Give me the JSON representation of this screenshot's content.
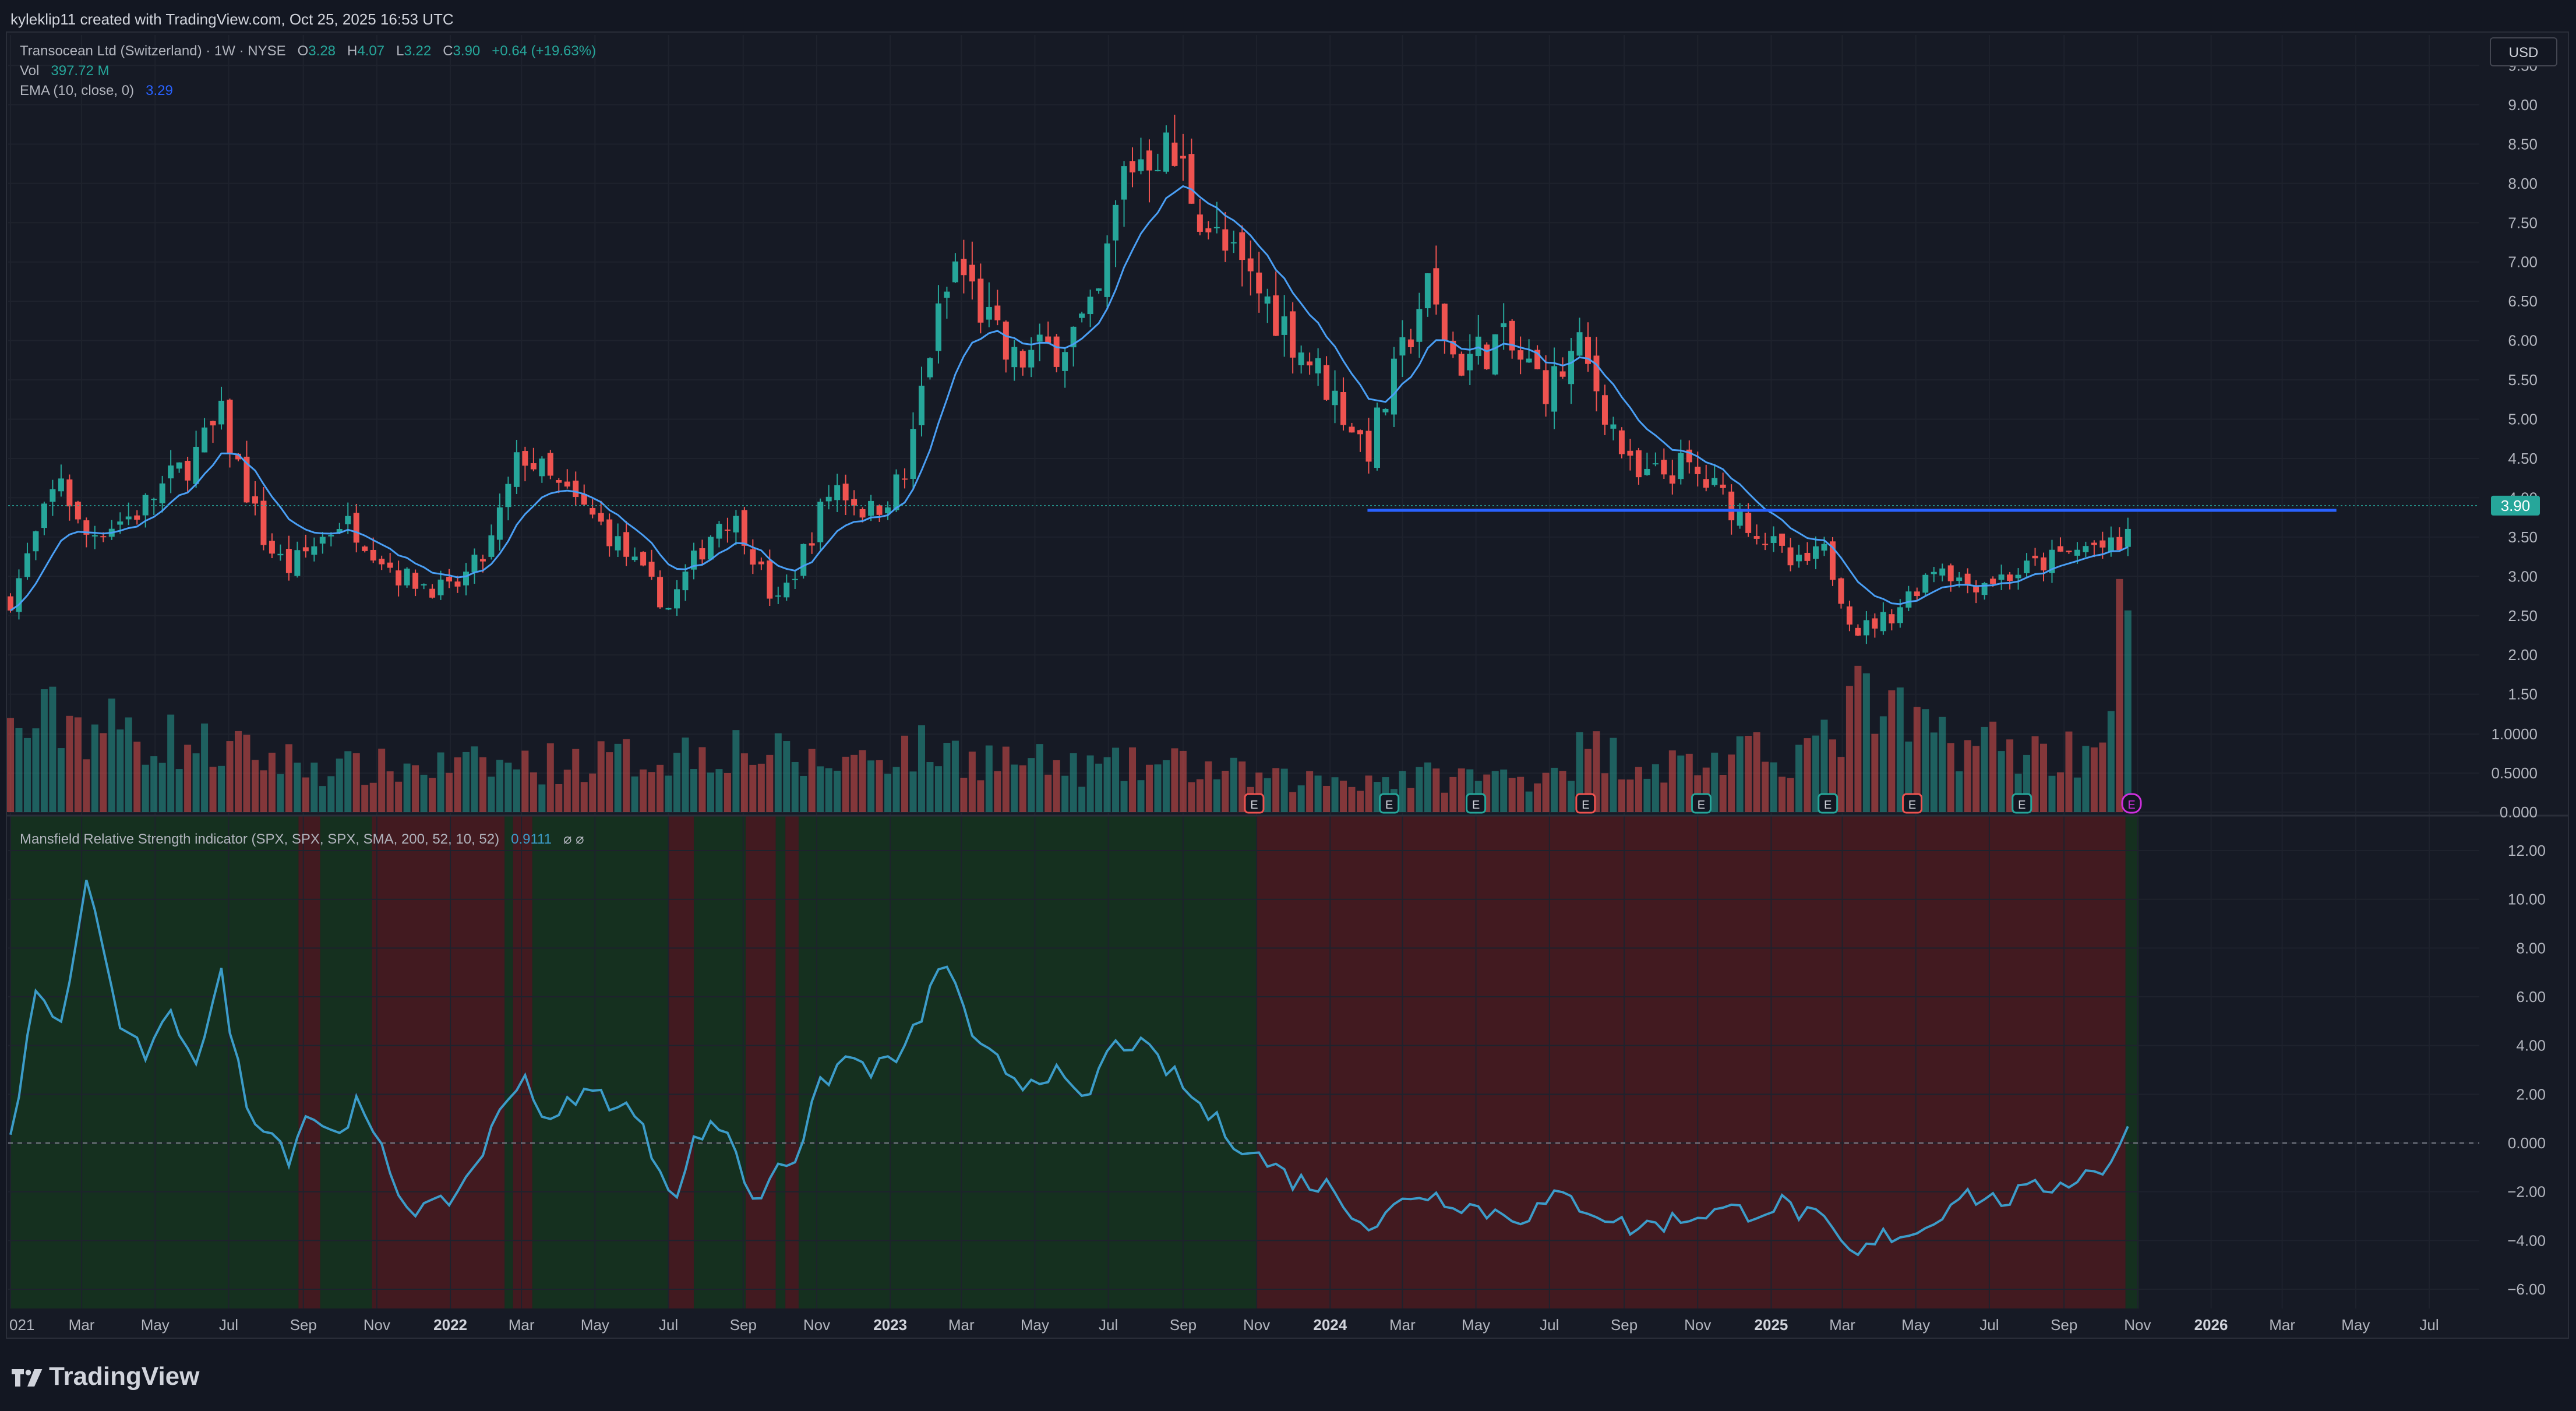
{
  "header": {
    "credit": "kyleklip11 created with TradingView.com, Oct 25, 2025 16:53 UTC"
  },
  "legend": {
    "symbol": "Transocean Ltd (Switzerland) · 1W · NYSE",
    "o_label": "O",
    "o_value": "3.28",
    "h_label": "H",
    "h_value": "4.07",
    "l_label": "L",
    "l_value": "3.22",
    "c_label": "C",
    "c_value": "3.90",
    "change": "+0.64 (+19.63%)",
    "vol_label": "Vol",
    "vol_value": "397.72 M",
    "ema_label": "EMA (10, close, 0)",
    "ema_value": "3.29",
    "mrs_label": "Mansfield Relative Strength indicator (SPX, SPX, SPX, SMA, 200, 52, 10, 52)",
    "mrs_value": "0.9111",
    "mrs_icons": "⌀  ⌀"
  },
  "currency_button": "USD",
  "brand": "TradingView",
  "colors": {
    "up": "#26a69a",
    "down": "#ef5350",
    "ema": "#4a9ff5",
    "mrs": "#3c9cc9",
    "level": "#2962ff",
    "bg": "#161a25",
    "bullish_zone": "#15301f",
    "bearish_zone": "#421a20"
  },
  "chart_data": [
    {
      "type": "candlestick",
      "title": "Transocean Ltd (Switzerland) · 1W · NYSE",
      "x_tick_labels": [
        "021",
        "Mar",
        "May",
        "Jul",
        "Sep",
        "Nov",
        "2022",
        "Mar",
        "May",
        "Jul",
        "Sep",
        "Nov",
        "2023",
        "Mar",
        "May",
        "Jul",
        "Sep",
        "Nov",
        "2024",
        "Mar",
        "May",
        "Jul",
        "Sep",
        "Nov",
        "2025",
        "Mar",
        "May",
        "Jul",
        "Sep",
        "Nov",
        "2026",
        "Mar",
        "May",
        "Jul"
      ],
      "x_tick_dates": [
        "2021-01-01",
        "2021-03-01",
        "2021-05-01",
        "2021-07-01",
        "2021-09-01",
        "2021-11-01",
        "2022-01-01",
        "2022-03-01",
        "2022-05-01",
        "2022-07-01",
        "2022-09-01",
        "2022-11-01",
        "2023-01-01",
        "2023-03-01",
        "2023-05-01",
        "2023-07-01",
        "2023-09-01",
        "2023-11-01",
        "2024-01-01",
        "2024-03-01",
        "2024-05-01",
        "2024-07-01",
        "2024-09-01",
        "2024-11-01",
        "2025-01-01",
        "2025-03-01",
        "2025-05-01",
        "2025-07-01",
        "2025-09-01",
        "2025-11-01",
        "2026-01-01",
        "2026-03-01",
        "2026-05-01",
        "2026-07-01"
      ],
      "y_tick_labels": [
        "0.000",
        "0.5000",
        "1.0000",
        "1.50",
        "2.00",
        "2.50",
        "3.00",
        "3.50",
        "4.00",
        "4.50",
        "5.00",
        "5.50",
        "6.00",
        "6.50",
        "7.00",
        "7.50",
        "8.00",
        "8.50",
        "9.00",
        "9.50"
      ],
      "price_axis": {
        "min": 1.9,
        "max": 9.5
      },
      "last_price": "3.90",
      "horizontal_level": {
        "value": 3.84,
        "from": "2024-02-01",
        "to": "2026-04-15"
      },
      "earnings_markers": {
        "dates": [
          "2023-10-30",
          "2024-02-19",
          "2024-05-01",
          "2024-07-31",
          "2024-11-04",
          "2025-02-17",
          "2025-04-28",
          "2025-07-28",
          "2025-10-27"
        ],
        "label": "E"
      },
      "ohlc_anchors": {
        "dates": [
          "2021-01-01",
          "2021-02-12",
          "2021-03-01",
          "2021-04-15",
          "2021-06-01",
          "2021-06-25",
          "2021-08-01",
          "2021-08-20",
          "2021-10-01",
          "2021-10-15",
          "2021-11-20",
          "2022-01-01",
          "2022-02-01",
          "2022-03-01",
          "2022-03-25",
          "2022-05-10",
          "2022-07-01",
          "2022-07-15",
          "2022-08-15",
          "2022-09-01",
          "2022-09-28",
          "2022-10-15",
          "2022-11-15",
          "2022-12-15",
          "2023-01-15",
          "2023-02-01",
          "2023-02-25",
          "2023-04-10",
          "2023-05-15",
          "2023-06-20",
          "2023-07-15",
          "2023-08-10",
          "2023-08-30",
          "2023-10-01",
          "2023-11-15",
          "2023-12-31",
          "2024-02-01",
          "2024-03-01",
          "2024-03-20",
          "2024-04-15",
          "2024-05-20",
          "2024-07-01",
          "2024-07-25",
          "2024-08-15",
          "2024-09-10",
          "2024-10-20",
          "2024-11-15",
          "2024-12-20",
          "2025-01-20",
          "2025-02-15",
          "2025-03-12",
          "2025-04-10",
          "2025-05-20",
          "2025-06-10",
          "2025-07-15",
          "2025-08-20",
          "2025-09-25",
          "2025-10-20",
          "2025-10-27"
        ],
        "closes": [
          2.7,
          4.3,
          3.5,
          3.8,
          4.5,
          5.0,
          3.4,
          3.1,
          3.7,
          3.6,
          3.0,
          2.8,
          3.3,
          4.6,
          4.2,
          3.6,
          2.6,
          3.0,
          3.8,
          3.6,
          2.6,
          3.1,
          4.2,
          3.8,
          4.3,
          5.8,
          7.0,
          5.7,
          5.9,
          6.3,
          8.2,
          8.5,
          8.2,
          7.2,
          6.4,
          5.4,
          4.6,
          5.8,
          6.7,
          5.7,
          6.0,
          5.4,
          5.9,
          5.2,
          4.2,
          4.4,
          4.1,
          3.6,
          3.1,
          3.3,
          2.3,
          2.5,
          3.2,
          2.9,
          3.0,
          3.2,
          3.4,
          3.3,
          3.9
        ]
      },
      "ema": {
        "label": "EMA (10, close, 0)",
        "last": 3.29
      }
    },
    {
      "type": "bar",
      "title": "Vol",
      "last_value": "397.72 M",
      "volume_anchors": {
        "dates": [
          "2021-01-01",
          "2021-02-10",
          "2021-06-20",
          "2021-10-01",
          "2022-02-20",
          "2022-06-15",
          "2022-08-20",
          "2022-11-01",
          "2023-01-10",
          "2023-03-01",
          "2023-06-01",
          "2023-09-01",
          "2023-11-15",
          "2024-03-01",
          "2024-06-15",
          "2024-08-01",
          "2024-10-01",
          "2024-12-15",
          "2025-02-15",
          "2025-03-15",
          "2025-04-20",
          "2025-06-20",
          "2025-08-15",
          "2025-09-25",
          "2025-10-20"
        ],
        "values": [
          1.0,
          1.2,
          0.8,
          0.55,
          0.6,
          0.7,
          0.85,
          0.6,
          0.8,
          0.75,
          0.55,
          0.6,
          0.4,
          0.45,
          0.45,
          0.8,
          0.6,
          0.7,
          0.85,
          1.4,
          1.1,
          0.9,
          0.75,
          0.8,
          2.4
        ]
      }
    },
    {
      "type": "line",
      "title": "Mansfield Relative Strength indicator (SPX, SPX, SPX, SMA, 200, 52, 10, 52)",
      "last_value": "0.9111",
      "y_tick_labels": [
        "12.00",
        "10.00",
        "8.00",
        "6.00",
        "4.00",
        "2.00",
        "0.000",
        "−2.00",
        "−4.00",
        "−6.00"
      ],
      "y_range": [
        -6.9,
        12.9
      ],
      "anchors": {
        "dates": [
          "2021-01-01",
          "2021-01-20",
          "2021-02-15",
          "2021-03-05",
          "2021-03-25",
          "2021-04-05",
          "2021-04-25",
          "2021-05-15",
          "2021-06-05",
          "2021-06-25",
          "2021-07-15",
          "2021-08-01",
          "2021-08-20",
          "2021-09-05",
          "2021-09-25",
          "2021-10-15",
          "2021-11-01",
          "2021-11-25",
          "2021-12-20",
          "2022-01-10",
          "2022-02-01",
          "2022-03-01",
          "2022-03-25",
          "2022-04-15",
          "2022-05-05",
          "2022-06-01",
          "2022-06-25",
          "2022-07-10",
          "2022-07-25",
          "2022-08-20",
          "2022-09-10",
          "2022-09-28",
          "2022-10-15",
          "2022-11-05",
          "2022-11-25",
          "2022-12-20",
          "2023-01-15",
          "2023-02-05",
          "2023-02-20",
          "2023-03-10",
          "2023-03-25",
          "2023-04-20",
          "2023-05-15",
          "2023-06-10",
          "2023-07-01",
          "2023-07-20",
          "2023-08-20",
          "2023-09-15",
          "2023-10-10",
          "2023-11-01",
          "2023-12-01",
          "2024-01-01",
          "2024-02-05",
          "2024-03-10",
          "2024-04-10",
          "2024-05-10",
          "2024-06-10",
          "2024-07-10",
          "2024-08-10",
          "2024-09-05",
          "2024-10-10",
          "2024-11-10",
          "2024-12-15",
          "2025-01-10",
          "2025-02-10",
          "2025-03-12",
          "2025-04-05",
          "2025-05-10",
          "2025-06-05",
          "2025-07-05",
          "2025-08-05",
          "2025-09-05",
          "2025-10-05",
          "2025-10-27"
        ],
        "values": [
          0.0,
          6.0,
          5.0,
          11.0,
          6.5,
          4.3,
          3.6,
          5.2,
          3.5,
          6.8,
          1.5,
          0.8,
          -0.5,
          1.4,
          0.3,
          1.5,
          0.0,
          -2.5,
          -2.8,
          -1.8,
          0.1,
          3.0,
          0.6,
          2.0,
          2.0,
          1.3,
          -1.1,
          -2.1,
          0.5,
          0.6,
          -2.7,
          -0.8,
          -0.5,
          2.4,
          3.5,
          3.0,
          3.8,
          6.5,
          7.5,
          4.0,
          3.5,
          2.5,
          3.0,
          1.5,
          3.8,
          4.2,
          3.0,
          1.5,
          0.3,
          -0.5,
          -1.5,
          -1.8,
          -3.5,
          -2.0,
          -2.3,
          -2.8,
          -3.0,
          -2.2,
          -2.8,
          -3.5,
          -3.2,
          -2.8,
          -2.8,
          -2.5,
          -3.2,
          -4.8,
          -3.8,
          -3.5,
          -2.0,
          -2.4,
          -2.0,
          -1.5,
          -1.0,
          0.9
        ]
      },
      "background_zones": [
        {
          "state": "bullish",
          "from": "2021-01-01",
          "to": "2021-08-28"
        },
        {
          "state": "bearish",
          "from": "2021-08-28",
          "to": "2021-09-15"
        },
        {
          "state": "bullish",
          "from": "2021-09-15",
          "to": "2021-10-28"
        },
        {
          "state": "bearish",
          "from": "2021-10-28",
          "to": "2022-02-15"
        },
        {
          "state": "bullish",
          "from": "2022-02-15",
          "to": "2022-02-22"
        },
        {
          "state": "bearish",
          "from": "2022-02-22",
          "to": "2022-03-10"
        },
        {
          "state": "bullish",
          "from": "2022-03-10",
          "to": "2022-07-01"
        },
        {
          "state": "bearish",
          "from": "2022-07-01",
          "to": "2022-07-22"
        },
        {
          "state": "bullish",
          "from": "2022-07-22",
          "to": "2022-09-03"
        },
        {
          "state": "bearish",
          "from": "2022-09-03",
          "to": "2022-09-28"
        },
        {
          "state": "bullish",
          "from": "2022-09-28",
          "to": "2022-10-06"
        },
        {
          "state": "bearish",
          "from": "2022-10-06",
          "to": "2022-10-17"
        },
        {
          "state": "bullish",
          "from": "2022-10-17",
          "to": "2023-11-01"
        },
        {
          "state": "bearish",
          "from": "2023-11-01",
          "to": "2025-10-22"
        },
        {
          "state": "bullish",
          "from": "2025-10-22",
          "to": "2025-11-02"
        }
      ]
    }
  ]
}
